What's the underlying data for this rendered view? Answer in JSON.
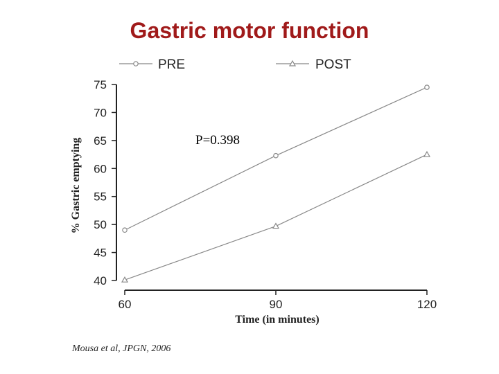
{
  "slide": {
    "title": "Gastric motor function",
    "citation": "Mousa et al, JPGN, 2006"
  },
  "chart_data": {
    "type": "line",
    "x": [
      60,
      90,
      120
    ],
    "xticks": [
      "60",
      "90",
      "120"
    ],
    "yticks": [
      "40",
      "45",
      "50",
      "55",
      "60",
      "65",
      "70",
      "75"
    ],
    "xlabel": "Time (in minutes)",
    "ylabel": "% Gastric emptying",
    "xlim": [
      60,
      120
    ],
    "ylim": [
      40,
      75
    ],
    "legend_position": "top",
    "grid": false,
    "annotation": "P=0.398",
    "series": [
      {
        "name": "PRE",
        "marker": "circle",
        "color": "#888888",
        "values": [
          49,
          62.3,
          74.5
        ]
      },
      {
        "name": "POST",
        "marker": "triangle",
        "color": "#888888",
        "values": [
          40.1,
          49.7,
          62.5
        ]
      }
    ]
  }
}
